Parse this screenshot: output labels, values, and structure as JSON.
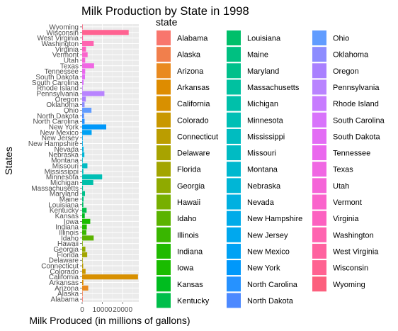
{
  "chart_data": {
    "type": "bar",
    "orientation": "horizontal",
    "title": "Milk Production by State in 1998",
    "xlabel": "Milk Produced (in millions of gallons)",
    "ylabel": "States",
    "xlim": [
      0,
      28000
    ],
    "x_ticks": [
      0,
      10000,
      20000
    ],
    "x_tick_labels": [
      "0",
      "10000",
      "20000"
    ],
    "grid": true,
    "legend_title": "state",
    "legend_placement": "right",
    "categories": [
      "Alabama",
      "Alaska",
      "Arizona",
      "Arkansas",
      "California",
      "Colorado",
      "Connecticut",
      "Delaware",
      "Florida",
      "Georgia",
      "Hawaii",
      "Idaho",
      "Illinois",
      "Indiana",
      "Iowa",
      "Kansas",
      "Kentucky",
      "Louisiana",
      "Maine",
      "Maryland",
      "Massachusetts",
      "Michigan",
      "Minnesota",
      "Mississippi",
      "Missouri",
      "Montana",
      "Nebraska",
      "Nevada",
      "New Hampshire",
      "New Jersey",
      "New Mexico",
      "New York",
      "North Carolina",
      "North Dakota",
      "Ohio",
      "Oklahoma",
      "Oregon",
      "Pennsylvania",
      "Rhode Island",
      "South Carolina",
      "South Dakota",
      "Tennessee",
      "Texas",
      "Utah",
      "Vermont",
      "Virginia",
      "Washington",
      "West Virginia",
      "Wisconsin",
      "Wyoming"
    ],
    "values": [
      300,
      30,
      3000,
      600,
      27600,
      1700,
      500,
      200,
      2500,
      1600,
      200,
      5700,
      2100,
      2300,
      4000,
      1300,
      2200,
      600,
      700,
      1400,
      400,
      5500,
      9900,
      600,
      2600,
      300,
      1100,
      700,
      300,
      300,
      4700,
      11900,
      1200,
      900,
      4600,
      1200,
      1800,
      11000,
      50,
      700,
      1400,
      1500,
      5900,
      1500,
      2700,
      1900,
      5700,
      400,
      23000,
      200
    ],
    "colors": [
      "#F8766D",
      "#F17F4C",
      "#E98A1F",
      "#DE8C00",
      "#D89000",
      "#C99800",
      "#BB9D00",
      "#A8A300",
      "#A3A500",
      "#8FAA00",
      "#77AF00",
      "#5BB300",
      "#39B600",
      "#20BA00",
      "#1ABC00",
      "#00BC1F",
      "#00BE4A",
      "#00BF6A",
      "#00C081",
      "#00C08B",
      "#00C1A0",
      "#00C0AA",
      "#00BFB5",
      "#00BCC0",
      "#00BBC3",
      "#00B8CF",
      "#00B6D6",
      "#00B0E0",
      "#00ABE9",
      "#00A8EE",
      "#00A2F4",
      "#0098FA",
      "#2692FF",
      "#4C89FF",
      "#619CFF",
      "#8D8CFF",
      "#A980FF",
      "#B984FF",
      "#C77CFF",
      "#D873FB",
      "#E36DF5",
      "#EA68EE",
      "#F067E3",
      "#F564D8",
      "#FA63CC",
      "#FC61C0",
      "#FF64B0",
      "#FF629F",
      "#FF6291",
      "#FC5F7D"
    ]
  }
}
